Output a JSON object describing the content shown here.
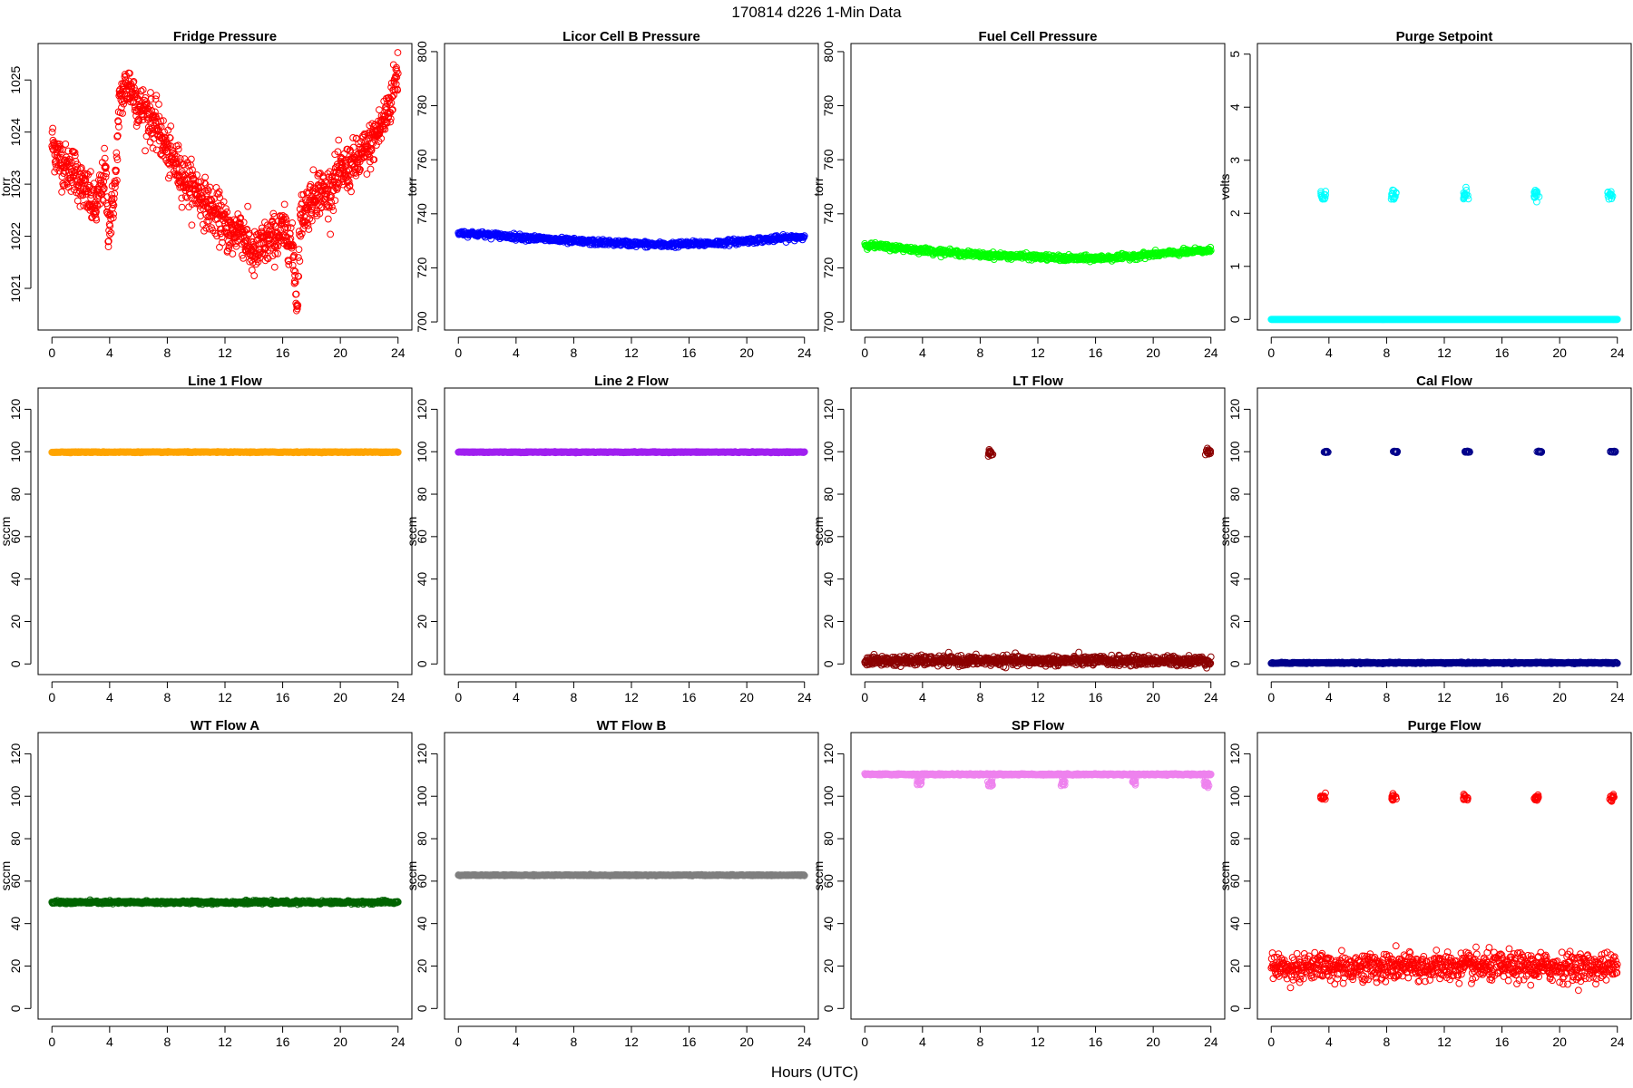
{
  "figure": {
    "title": "170814   d226   1-Min Data",
    "xlabel": "Hours (UTC)"
  },
  "chart_data": [
    {
      "type": "scatter",
      "title": "Fridge Pressure",
      "ylabel": "torr",
      "color": "#ff0000",
      "xlim": [
        -0.96,
        24.96
      ],
      "ylim": [
        1020.2,
        1025.7
      ],
      "xticks": [
        0,
        4,
        8,
        12,
        16,
        20,
        24
      ],
      "yticks": [
        1021,
        1022,
        1023,
        1024,
        1025
      ],
      "ymode": "fridge",
      "spread": 0.22,
      "x": [
        0,
        0.5,
        1,
        1.5,
        2,
        2.5,
        3,
        3.5,
        3.7,
        3.9,
        4.1,
        4.4,
        4.7,
        5,
        5.3,
        5.6,
        6,
        6.5,
        7,
        7.5,
        8,
        8.5,
        9,
        9.5,
        10,
        10.5,
        11,
        11.5,
        12,
        12.5,
        13,
        13.5,
        14,
        14.5,
        15,
        15.5,
        16,
        16.5,
        16.8,
        17,
        17.2,
        17.5,
        18,
        18.5,
        19,
        19.5,
        20,
        21,
        22,
        23,
        23.5,
        24
      ],
      "y": [
        1023.8,
        1023.5,
        1023.3,
        1023.3,
        1023.0,
        1022.8,
        1022.5,
        1023.0,
        1023.3,
        1022.2,
        1022.4,
        1023.0,
        1024.6,
        1024.8,
        1024.9,
        1024.8,
        1024.5,
        1024.4,
        1024.2,
        1024.0,
        1023.6,
        1023.4,
        1023.2,
        1023.0,
        1022.9,
        1022.7,
        1022.5,
        1022.4,
        1022.2,
        1022.0,
        1022.2,
        1021.9,
        1021.6,
        1021.8,
        1021.9,
        1022.0,
        1022.1,
        1022.0,
        1021.5,
        1020.6,
        1022.3,
        1022.5,
        1022.7,
        1022.9,
        1022.8,
        1023.0,
        1023.2,
        1023.4,
        1023.7,
        1024.2,
        1024.6,
        1025.2
      ],
      "n": 1300
    },
    {
      "type": "scatter",
      "title": "Licor Cell B Pressure",
      "ylabel": "torr",
      "color": "#0000ff",
      "xlim": [
        -0.96,
        24.96
      ],
      "ylim": [
        697,
        803
      ],
      "xticks": [
        0,
        4,
        8,
        12,
        16,
        20,
        24
      ],
      "yticks": [
        700,
        720,
        740,
        760,
        780,
        800
      ],
      "x": [
        0,
        4,
        8,
        12,
        14,
        16,
        18,
        20,
        24
      ],
      "y": [
        733,
        731.5,
        729.8,
        729,
        728.5,
        728.8,
        729.2,
        730,
        731.5
      ],
      "spread": 0.5,
      "n": 700
    },
    {
      "type": "scatter",
      "title": "Fuel Cell Pressure",
      "ylabel": "torr",
      "color": "#00ff00",
      "xlim": [
        -0.96,
        24.96
      ],
      "ylim": [
        697,
        803
      ],
      "xticks": [
        0,
        4,
        8,
        12,
        16,
        20,
        24
      ],
      "yticks": [
        700,
        720,
        740,
        760,
        780,
        800
      ],
      "x": [
        0,
        4,
        8,
        12,
        14,
        16,
        18,
        20,
        24
      ],
      "y": [
        728.5,
        726.5,
        724.8,
        724,
        723.5,
        723.5,
        724,
        725,
        726.5
      ],
      "spread": 0.5,
      "n": 700
    },
    {
      "type": "scatter",
      "title": "Purge Setpoint",
      "ylabel": "volts",
      "color": "#00ffff",
      "xlim": [
        -0.96,
        24.96
      ],
      "ylim": [
        -0.2,
        5.2
      ],
      "xticks": [
        0,
        4,
        8,
        12,
        16,
        20,
        24
      ],
      "yticks": [
        0,
        1,
        2,
        3,
        4,
        5
      ],
      "x": [
        0,
        24
      ],
      "y": [
        0,
        0
      ],
      "spread": 0,
      "n": 600,
      "clusters": [
        {
          "x": 3.6,
          "y": 2.34
        },
        {
          "x": 8.5,
          "y": 2.34
        },
        {
          "x": 13.5,
          "y": 2.34
        },
        {
          "x": 18.4,
          "y": 2.34
        },
        {
          "x": 23.5,
          "y": 2.34
        }
      ],
      "cluster_spread": 0.06
    },
    {
      "type": "scatter",
      "title": "Line 1 Flow",
      "ylabel": "sccm",
      "color": "#ffa500",
      "xlim": [
        -0.96,
        24.96
      ],
      "ylim": [
        -5,
        130
      ],
      "xticks": [
        0,
        4,
        8,
        12,
        16,
        20,
        24
      ],
      "yticks": [
        0,
        20,
        40,
        60,
        80,
        100,
        120
      ],
      "x": [
        0,
        24
      ],
      "y": [
        99.8,
        99.8
      ],
      "spread": 0.1,
      "n": 600
    },
    {
      "type": "scatter",
      "title": "Line 2 Flow",
      "ylabel": "sccm",
      "color": "#a020f0",
      "xlim": [
        -0.96,
        24.96
      ],
      "ylim": [
        -5,
        130
      ],
      "xticks": [
        0,
        4,
        8,
        12,
        16,
        20,
        24
      ],
      "yticks": [
        0,
        20,
        40,
        60,
        80,
        100,
        120
      ],
      "x": [
        0,
        24
      ],
      "y": [
        99.8,
        99.8
      ],
      "spread": 0.1,
      "n": 600
    },
    {
      "type": "scatter",
      "title": "LT Flow",
      "ylabel": "sccm",
      "color": "#8b0000",
      "xlim": [
        -0.96,
        24.96
      ],
      "ylim": [
        -5,
        130
      ],
      "xticks": [
        0,
        4,
        8,
        12,
        16,
        20,
        24
      ],
      "yticks": [
        0,
        20,
        40,
        60,
        80,
        100,
        120
      ],
      "x": [
        0,
        24
      ],
      "y": [
        1.5,
        1.5
      ],
      "spread": 1.1,
      "n": 900,
      "clusters": [
        {
          "x": 8.7,
          "y": 99.5
        },
        {
          "x": 23.8,
          "y": 99.5
        }
      ],
      "cluster_spread": 1.2
    },
    {
      "type": "scatter",
      "title": "Cal Flow",
      "ylabel": "sccm",
      "color": "#00008b",
      "xlim": [
        -0.96,
        24.96
      ],
      "ylim": [
        -5,
        130
      ],
      "xticks": [
        0,
        4,
        8,
        12,
        16,
        20,
        24
      ],
      "yticks": [
        0,
        20,
        40,
        60,
        80,
        100,
        120
      ],
      "x": [
        0,
        24
      ],
      "y": [
        0.5,
        0.5
      ],
      "spread": 0.15,
      "n": 600,
      "clusters": [
        {
          "x": 3.8,
          "y": 100
        },
        {
          "x": 8.6,
          "y": 100
        },
        {
          "x": 13.6,
          "y": 100
        },
        {
          "x": 18.6,
          "y": 100
        },
        {
          "x": 23.7,
          "y": 100
        }
      ],
      "cluster_spread": 0.15
    },
    {
      "type": "scatter",
      "title": "WT Flow A",
      "ylabel": "sccm",
      "color": "#006400",
      "xlim": [
        -0.96,
        24.96
      ],
      "ylim": [
        -5,
        130
      ],
      "xticks": [
        0,
        4,
        8,
        12,
        16,
        20,
        24
      ],
      "yticks": [
        0,
        20,
        40,
        60,
        80,
        100,
        120
      ],
      "x": [
        0,
        24
      ],
      "y": [
        50,
        50
      ],
      "spread": 0.35,
      "n": 700
    },
    {
      "type": "scatter",
      "title": "WT Flow B",
      "ylabel": "sccm",
      "color": "#7f7f7f",
      "xlim": [
        -0.96,
        24.96
      ],
      "ylim": [
        -5,
        130
      ],
      "xticks": [
        0,
        4,
        8,
        12,
        16,
        20,
        24
      ],
      "yticks": [
        0,
        20,
        40,
        60,
        80,
        100,
        120
      ],
      "x": [
        0,
        24
      ],
      "y": [
        62.8,
        62.8
      ],
      "spread": 0.1,
      "n": 600
    },
    {
      "type": "scatter",
      "title": "SP Flow",
      "ylabel": "sccm",
      "color": "#ee82ee",
      "xlim": [
        -0.96,
        24.96
      ],
      "ylim": [
        -5,
        130
      ],
      "xticks": [
        0,
        4,
        8,
        12,
        16,
        20,
        24
      ],
      "yticks": [
        0,
        20,
        40,
        60,
        80,
        100,
        120
      ],
      "x": [
        0,
        24
      ],
      "y": [
        110.3,
        110.3
      ],
      "spread": 0.15,
      "n": 650,
      "clusters": [
        {
          "x": 3.8,
          "y": 107
        },
        {
          "x": 8.7,
          "y": 106
        },
        {
          "x": 13.7,
          "y": 107
        },
        {
          "x": 18.7,
          "y": 107
        },
        {
          "x": 23.7,
          "y": 106
        }
      ],
      "cluster_spread": 1
    },
    {
      "type": "scatter",
      "title": "Purge Flow",
      "ylabel": "sccm",
      "color": "#ff0000",
      "xlim": [
        -0.96,
        24.96
      ],
      "ylim": [
        -5,
        130
      ],
      "xticks": [
        0,
        4,
        8,
        12,
        16,
        20,
        24
      ],
      "yticks": [
        0,
        20,
        40,
        60,
        80,
        100,
        120
      ],
      "x": [
        0,
        24
      ],
      "y": [
        19.5,
        19.5
      ],
      "spread": 3.3,
      "n": 900,
      "clusters": [
        {
          "x": 3.6,
          "y": 99.5
        },
        {
          "x": 8.5,
          "y": 99.5
        },
        {
          "x": 13.5,
          "y": 99.5
        },
        {
          "x": 18.4,
          "y": 99.5
        },
        {
          "x": 23.6,
          "y": 99.5
        }
      ],
      "cluster_spread": 0.8
    }
  ]
}
